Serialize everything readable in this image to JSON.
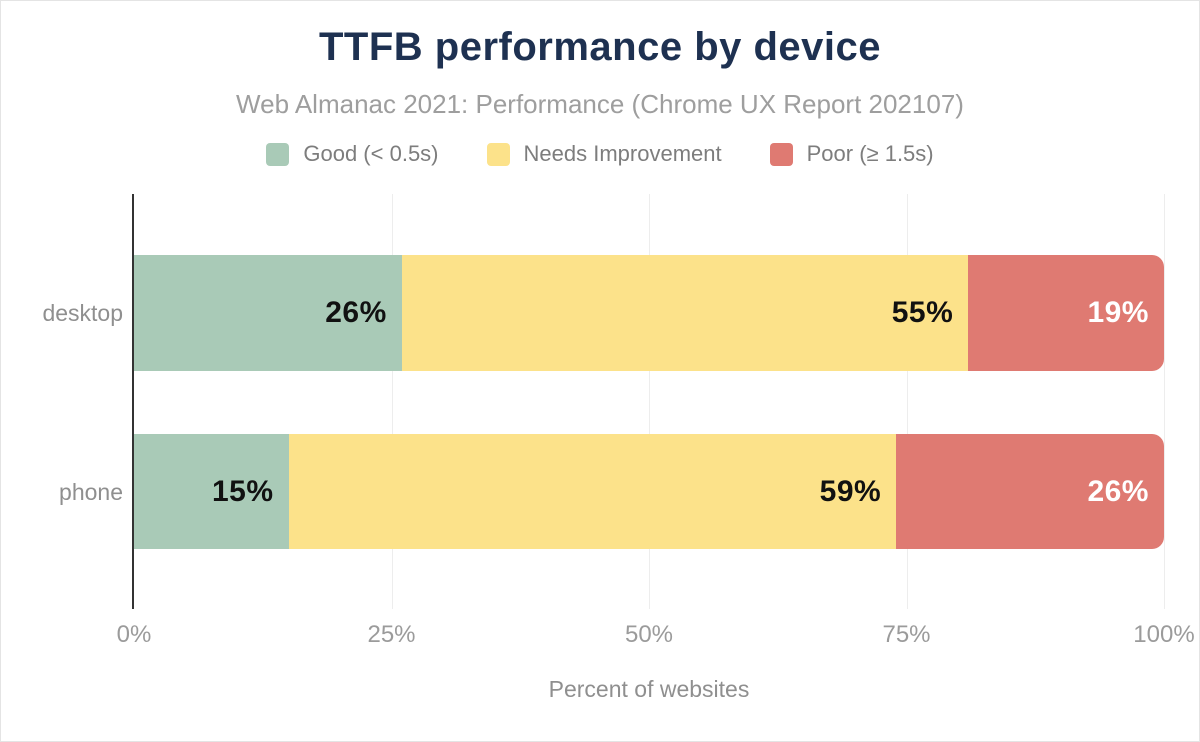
{
  "chart_data": {
    "type": "bar",
    "orientation": "horizontal",
    "stacked": true,
    "title": "TTFB performance by device",
    "subtitle": "Web Almanac 2021: Performance (Chrome UX Report 202107)",
    "xlabel": "Percent of websites",
    "xlim": [
      0,
      100
    ],
    "x_ticks": [
      {
        "value": 0,
        "label": "0%"
      },
      {
        "value": 25,
        "label": "25%"
      },
      {
        "value": 50,
        "label": "50%"
      },
      {
        "value": 75,
        "label": "75%"
      },
      {
        "value": 100,
        "label": "100%"
      }
    ],
    "categories": [
      "desktop",
      "phone"
    ],
    "series": [
      {
        "name": "Good (< 0.5s)",
        "color": "#a9cab7",
        "label_color": "#111111",
        "values": [
          26,
          15
        ],
        "labels": [
          "26%",
          "15%"
        ]
      },
      {
        "name": "Needs Improvement",
        "color": "#fce28a",
        "label_color": "#111111",
        "values": [
          55,
          59
        ],
        "labels": [
          "55%",
          "59%"
        ]
      },
      {
        "name": "Poor (≥ 1.5s)",
        "color": "#df7a72",
        "label_color": "#ffffff",
        "values": [
          19,
          26
        ],
        "labels": [
          "19%",
          "26%"
        ]
      }
    ],
    "legend_position": "top",
    "grid": "vertical",
    "colors": {
      "title": "#1e3151",
      "subtitle": "#9e9e9e",
      "legend_text": "#7d7d7d",
      "axis_line": "#333333",
      "gridline": "#ededed",
      "tick_text": "#9b9b9b",
      "category_text": "#8f8f8f"
    }
  }
}
